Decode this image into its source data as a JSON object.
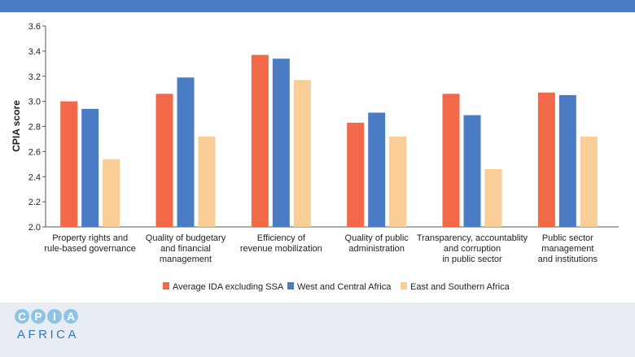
{
  "chart_data": {
    "type": "bar",
    "ylabel": "CPIA score",
    "ylim": [
      2.0,
      3.6
    ],
    "yticks": [
      "2.0",
      "2.2",
      "2.4",
      "2.6",
      "2.8",
      "3.0",
      "3.2",
      "3.4",
      "3.6"
    ],
    "grid": false,
    "legend_position": "bottom",
    "categories": [
      [
        "Property rights and",
        "rule-based governance"
      ],
      [
        "Quality of budgetary",
        "and financial",
        "management"
      ],
      [
        "Efficiency of",
        "revenue mobilization"
      ],
      [
        "Quality of public",
        "administration"
      ],
      [
        "Transparency, accountablity",
        "and corruption",
        "in public sector"
      ],
      [
        "Public sector",
        "management",
        "and institutions"
      ]
    ],
    "series": [
      {
        "name": "Average IDA excluding SSA",
        "color": "#f2694a",
        "values": [
          3.0,
          3.06,
          3.37,
          2.83,
          3.06,
          3.07
        ]
      },
      {
        "name": "West and Central Africa",
        "color": "#4a7cc4",
        "values": [
          2.94,
          3.19,
          3.34,
          2.91,
          2.89,
          3.05
        ]
      },
      {
        "name": "East and Southern Africa",
        "color": "#f9cd96",
        "values": [
          2.54,
          2.72,
          3.17,
          2.72,
          2.46,
          2.72
        ]
      }
    ]
  },
  "logo": {
    "letters": [
      "C",
      "P",
      "I",
      "A"
    ],
    "word": "AFRICA"
  }
}
